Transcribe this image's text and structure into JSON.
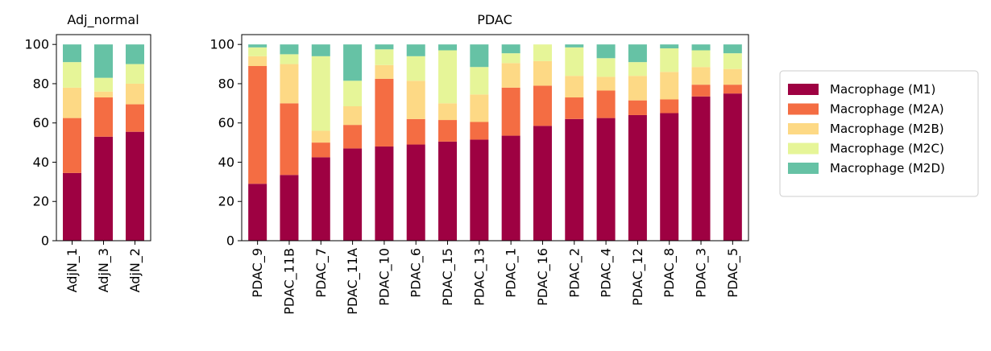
{
  "colors": {
    "Macrophage (M1)": "#9e0142",
    "Macrophage (M2A)": "#f46d43",
    "Macrophage (M2B)": "#fdd985",
    "Macrophage (M2C)": "#e6f598",
    "Macrophage (M2D)": "#66c2a5"
  },
  "legend": {
    "placement": "right",
    "entries": [
      "Macrophage (M1)",
      "Macrophage (M2A)",
      "Macrophage (M2B)",
      "Macrophage (M2C)",
      "Macrophage (M2D)"
    ]
  },
  "chart_data": [
    {
      "type": "bar",
      "stacked": true,
      "title": "Adj_normal",
      "xlabel": "",
      "ylabel": "",
      "ylim": [
        0,
        105
      ],
      "yticks": [
        0,
        20,
        40,
        60,
        80,
        100
      ],
      "grid": false,
      "categories": [
        "AdjN_1",
        "AdjN_3",
        "AdjN_2"
      ],
      "series": [
        {
          "name": "Macrophage (M1)",
          "values": [
            34.5,
            53,
            55.5
          ]
        },
        {
          "name": "Macrophage (M2A)",
          "values": [
            28,
            20,
            14
          ]
        },
        {
          "name": "Macrophage (M2B)",
          "values": [
            15.5,
            3,
            10.5
          ]
        },
        {
          "name": "Macrophage (M2C)",
          "values": [
            13,
            7,
            10
          ]
        },
        {
          "name": "Macrophage (M2D)",
          "values": [
            9,
            17,
            10
          ]
        }
      ]
    },
    {
      "type": "bar",
      "stacked": true,
      "title": "PDAC",
      "xlabel": "",
      "ylabel": "",
      "ylim": [
        0,
        105
      ],
      "yticks": [
        0,
        20,
        40,
        60,
        80,
        100
      ],
      "grid": false,
      "categories": [
        "PDAC_9",
        "PDAC_11B",
        "PDAC_7",
        "PDAC_11A",
        "PDAC_10",
        "PDAC_6",
        "PDAC_15",
        "PDAC_13",
        "PDAC_1",
        "PDAC_16",
        "PDAC_2",
        "PDAC_4",
        "PDAC_12",
        "PDAC_8",
        "PDAC_3",
        "PDAC_5"
      ],
      "series": [
        {
          "name": "Macrophage (M1)",
          "values": [
            29,
            33.5,
            42.5,
            47,
            48,
            49,
            50.5,
            51.5,
            53.5,
            58.5,
            62,
            62.5,
            64,
            65,
            73.5,
            75
          ]
        },
        {
          "name": "Macrophage (M2A)",
          "values": [
            60,
            36.5,
            7.5,
            12,
            34.5,
            13,
            11,
            9,
            24.5,
            20.5,
            11,
            14,
            7.5,
            7,
            6,
            4.5
          ]
        },
        {
          "name": "Macrophage (M2B)",
          "values": [
            5,
            20,
            6,
            9.5,
            7,
            19.5,
            8.5,
            14,
            12.5,
            12.5,
            11,
            7,
            12.5,
            14,
            9,
            8
          ]
        },
        {
          "name": "Macrophage (M2C)",
          "values": [
            4.5,
            5,
            38,
            13,
            8,
            12.5,
            27,
            14,
            5,
            8.5,
            14.5,
            9.5,
            7,
            12,
            8.5,
            8
          ]
        },
        {
          "name": "Macrophage (M2D)",
          "values": [
            1.5,
            5,
            6,
            18.5,
            2.5,
            6,
            3,
            11.5,
            4.5,
            0,
            1.5,
            7,
            9,
            2,
            3,
            4.5
          ]
        }
      ]
    }
  ]
}
